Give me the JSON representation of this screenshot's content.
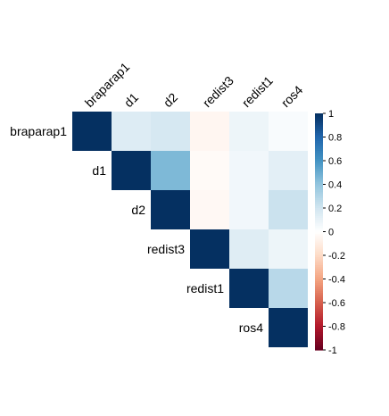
{
  "chart_data": {
    "type": "heatmap",
    "variables": [
      "braparap1",
      "d1",
      "d2",
      "redist3",
      "redist1",
      "ros4"
    ],
    "matrix": [
      [
        1.0,
        0.15,
        0.18,
        -0.05,
        0.08,
        0.03
      ],
      [
        0.15,
        1.0,
        0.45,
        -0.03,
        0.06,
        0.12
      ],
      [
        0.18,
        0.45,
        1.0,
        -0.04,
        0.06,
        0.22
      ],
      [
        -0.05,
        -0.03,
        -0.04,
        1.0,
        0.14,
        0.08
      ],
      [
        0.08,
        0.06,
        0.06,
        0.14,
        1.0,
        0.28
      ],
      [
        0.03,
        0.12,
        0.22,
        0.08,
        0.28,
        1.0
      ]
    ],
    "layout": "upper-triangle",
    "colorbar": {
      "range": [
        -1,
        1
      ],
      "ticks": [
        "1",
        "0.8",
        "0.6",
        "0.4",
        "0.2",
        "0",
        "-0.2",
        "-0.4",
        "-0.6",
        "-0.8",
        "-1"
      ],
      "colors": [
        "#67001f",
        "#b2182b",
        "#d6604d",
        "#f4a582",
        "#fddbc7",
        "#ffffff",
        "#d1e5f0",
        "#92c5de",
        "#4393c3",
        "#2166ac",
        "#053061"
      ]
    }
  }
}
